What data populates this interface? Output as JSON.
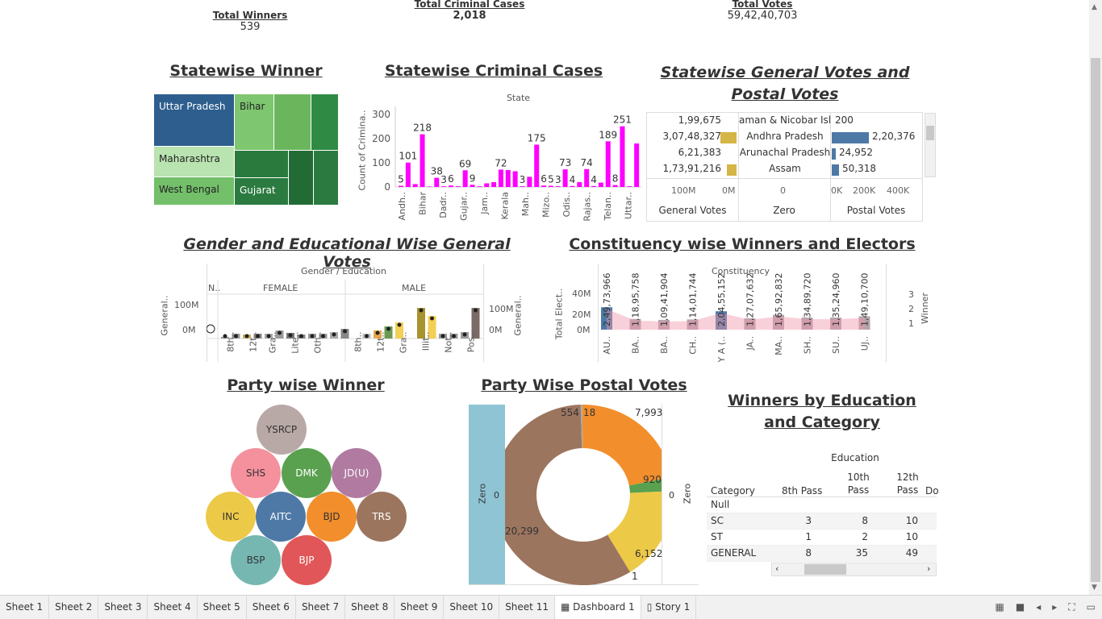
{
  "kpis": [
    {
      "label": "Total  Winners",
      "value": "539"
    },
    {
      "label": "Total Criminal Cases",
      "value": "2,018"
    },
    {
      "label": "Total Votes",
      "value": "59,42,40,703"
    }
  ],
  "titles": {
    "statewise_winner": "Statewise Winner",
    "criminal_cases": "Statewise Criminal Cases",
    "general_postal": "Statewise General Votes and Postal Votes",
    "gender_edu": "Gender and Educational Wise General Votes",
    "constituency": "Constituency wise Winners and Electors",
    "party_winner": "Party wise Winner",
    "party_postal": "Party Wise Postal Votes",
    "winners_edu": "Winners by Education and Category"
  },
  "treemap": [
    "Uttar Pradesh",
    "Bihar",
    "Maharashtra",
    "West Bengal",
    "Gujarat"
  ],
  "criminal": {
    "header": "State",
    "ylabel": "Count of Crimina..",
    "yticks": [
      "300",
      "200",
      "100",
      "0"
    ],
    "xlabels": [
      "Andh..",
      "Bihar",
      "Dadr..",
      "Gujar..",
      "Jam..",
      "Kerala",
      "Mah..",
      "Mizo..",
      "Odis..",
      "Rajas..",
      "Telan..",
      "Uttar.."
    ],
    "data_labels": [
      "5",
      "101",
      "218",
      "38",
      "3",
      "6",
      "69",
      "9",
      "72",
      "3",
      "175",
      "6",
      "5",
      "3",
      "73",
      "4",
      "74",
      "4",
      "189",
      "8",
      "251"
    ]
  },
  "genpostal": {
    "rows": [
      {
        "gen": "1,99,675",
        "state": "aman & Nicobar Isla",
        "postal": "200"
      },
      {
        "gen": "3,07,48,327",
        "state": "Andhra Pradesh",
        "postal": "2,20,376"
      },
      {
        "gen": "6,21,383",
        "state": "Arunachal Pradesh",
        "postal": "24,952"
      },
      {
        "gen": "1,73,91,216",
        "state": "Assam",
        "postal": "50,318"
      }
    ],
    "axis_gen": [
      "100M",
      "0M"
    ],
    "axis_zero": "0",
    "axis_postal": [
      "0K",
      "200K",
      "400K"
    ],
    "col_labels": [
      "General Votes",
      "Zero",
      "Postal Votes"
    ]
  },
  "gender": {
    "header": "Gender / Education",
    "groups": [
      "N..",
      "FEMALE",
      "MALE"
    ],
    "ylabel": "General..",
    "yticks": [
      "100M",
      "0M"
    ],
    "xlabels": [
      "8th..",
      "12t..",
      "Gra..",
      "Lite..",
      "Oth..",
      "8th..",
      "12t..",
      "Gra..",
      "Illit..",
      "Not..",
      "Pos.."
    ]
  },
  "constituency": {
    "header": "Constituency",
    "ylabel": "Total Elect..",
    "yticks": [
      "40M",
      "20M",
      "0M"
    ],
    "right_label": "Winner",
    "right_ticks": [
      "3",
      "2",
      "1"
    ],
    "xlabels": [
      "AU..",
      "BA..",
      "BA..",
      "CH..",
      "GAY A (..",
      "JA..",
      "MA..",
      "SH..",
      "SU..",
      "UJ.."
    ],
    "values": [
      "2,49,73,966",
      "1,18,95,758",
      "1,09,41,904",
      "1,14,01,744",
      "2,04,55,152",
      "1,27,07,632",
      "1,65,92,832",
      "1,34,89,720",
      "1,35,24,960",
      "1,49,10,700"
    ]
  },
  "parties": [
    "YSRCP",
    "SHS",
    "DMK",
    "JD(U)",
    "INC",
    "AITC",
    "BJD",
    "TRS",
    "BSP",
    "BJP"
  ],
  "donut": {
    "left_label": "Zero",
    "right_label": "Zero",
    "zero_left": "0",
    "zero_right": "0",
    "labels": [
      "554",
      "18",
      "7,993",
      "920",
      "20,299",
      "6,152",
      "1"
    ]
  },
  "edu_table": {
    "header": "Education",
    "category_label": "Category",
    "cols": [
      "8th Pass",
      "10th Pass",
      "12th Pass",
      "Do"
    ],
    "rows": [
      {
        "cat": "Null",
        "vals": [
          "",
          "",
          ""
        ]
      },
      {
        "cat": "SC",
        "vals": [
          "3",
          "8",
          "10"
        ]
      },
      {
        "cat": "ST",
        "vals": [
          "1",
          "2",
          "10"
        ]
      },
      {
        "cat": "GENERAL",
        "vals": [
          "8",
          "35",
          "49"
        ]
      }
    ]
  },
  "tabs": [
    "Sheet 1",
    "Sheet 2",
    "Sheet 3",
    "Sheet 4",
    "Sheet 5",
    "Sheet 6",
    "Sheet 7",
    "Sheet 8",
    "Sheet 9",
    "Sheet 10",
    "Sheet 11",
    "Dashboard 1",
    "Story 1"
  ],
  "colors": {
    "magenta": "#ff00ff",
    "blue": "#4e79a7",
    "gold": "#d4b545",
    "green_dark": "#2e7d42",
    "green_light": "#7fc46c"
  }
}
